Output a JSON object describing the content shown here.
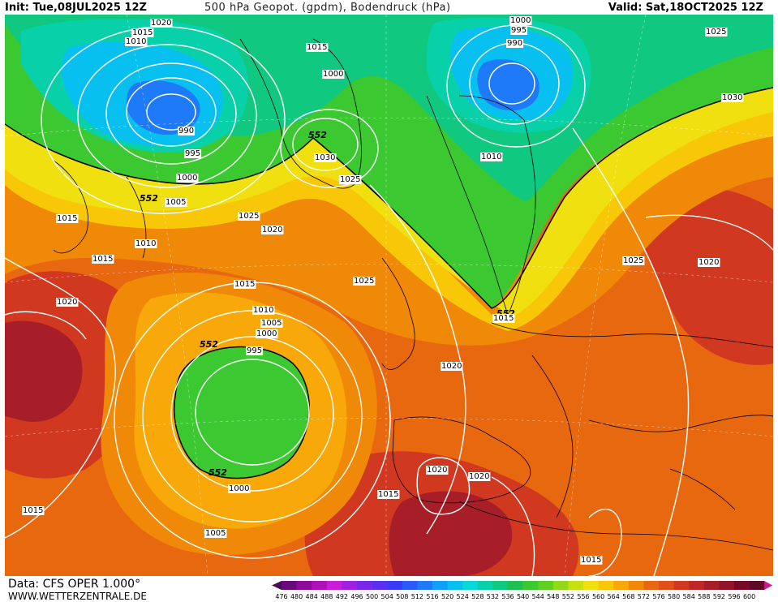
{
  "header": {
    "init": "Init: Tue,08JUL2025 12Z",
    "title": "500 hPa Geopot. (gpdm), Bodendruck (hPa)",
    "valid": "Valid: Sat,18OCT2025 12Z"
  },
  "footer": {
    "data_source": "Data: CFS OPER 1.000°",
    "website": "WWW.WETTERZENTRALE.DE"
  },
  "legend": {
    "values": [
      "476",
      "480",
      "484",
      "488",
      "492",
      "496",
      "500",
      "504",
      "508",
      "512",
      "516",
      "520",
      "524",
      "528",
      "532",
      "536",
      "540",
      "544",
      "548",
      "552",
      "556",
      "560",
      "564",
      "568",
      "572",
      "576",
      "580",
      "584",
      "588",
      "592",
      "596",
      "600"
    ],
    "colors": [
      "#4b0a5a",
      "#6a0a7a",
      "#8e0a9a",
      "#b010b8",
      "#c81ed8",
      "#a020e0",
      "#7a28e8",
      "#5a30f0",
      "#3a3af8",
      "#2a5af8",
      "#1e7af8",
      "#10a0f8",
      "#08c0f0",
      "#08d8d8",
      "#08d0a8",
      "#10c880",
      "#20c050",
      "#3cc830",
      "#60d020",
      "#90d818",
      "#c8e010",
      "#f0e010",
      "#f8c808",
      "#f8a808",
      "#f08808",
      "#e86810",
      "#e05018",
      "#d03820",
      "#c02828",
      "#a81e28",
      "#901428",
      "#780a28",
      "#600828"
    ]
  },
  "contour_labels": {
    "geopotential": [
      "552",
      "552",
      "552",
      "552",
      "552",
      "552"
    ],
    "pressure": [
      "1020",
      "1015",
      "1010",
      "1015",
      "1000",
      "995",
      "990",
      "995",
      "990",
      "1000",
      "1005",
      "1010",
      "1015",
      "1020",
      "1025",
      "1030",
      "1025",
      "1030",
      "1010",
      "1000",
      "1005",
      "1015",
      "1015",
      "1010",
      "1015",
      "1020",
      "1015",
      "1020",
      "1025",
      "1025",
      "1020",
      "1015",
      "1010",
      "1005",
      "1000",
      "995",
      "1020",
      "1020",
      "1015",
      "1020",
      "1025",
      "1000",
      "1005",
      "1015",
      "1015",
      "1020",
      "1015"
    ]
  }
}
